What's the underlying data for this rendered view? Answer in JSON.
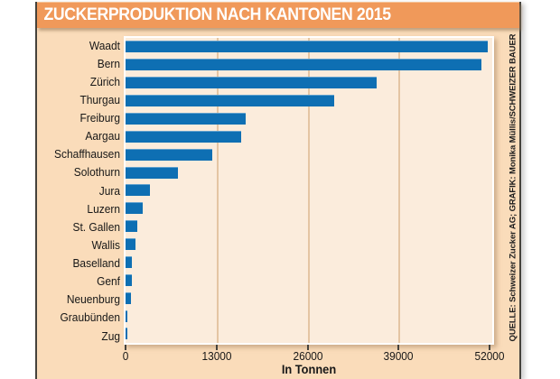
{
  "header": {
    "title": "ZUCKERPRODUKTION NACH KANTONEN 2015",
    "bg_color": "#f0995a",
    "text_color": "#ffffff"
  },
  "source_note": "QUELLE: Schweizer Zucker AG; GRAFIK: Monika Müllis/SCHWEIZER BAUER",
  "colors": {
    "panel_bg": "#fadcba",
    "plot_bg": "#fbecdc",
    "bar": "#0e6fb3",
    "grid": "#e4c5a3",
    "frame_border": "#45423c",
    "page_bg": "#ffffff"
  },
  "chart_data": {
    "type": "bar",
    "orientation": "horizontal",
    "title": "ZUCKERPRODUKTION NACH KANTONEN 2015",
    "categories": [
      "Waadt",
      "Bern",
      "Zürich",
      "Thurgau",
      "Freiburg",
      "Aargau",
      "Schaffhausen",
      "Solothurn",
      "Jura",
      "Luzern",
      "St. Gallen",
      "Wallis",
      "Baselland",
      "Genf",
      "Neuenburg",
      "Graubünden",
      "Zug"
    ],
    "values": [
      51700,
      50900,
      35900,
      29800,
      17200,
      16500,
      12400,
      7500,
      3500,
      2500,
      1700,
      1400,
      900,
      850,
      800,
      300,
      250
    ],
    "xlabel": "In Tonnen",
    "ylabel": "",
    "xlim": [
      0,
      52000
    ],
    "xticks": [
      0,
      13000,
      26000,
      39000,
      52000
    ],
    "gridline_values": [
      13000,
      26000,
      39000
    ],
    "grid": true,
    "legend": "none",
    "unit": "Tonnen"
  }
}
